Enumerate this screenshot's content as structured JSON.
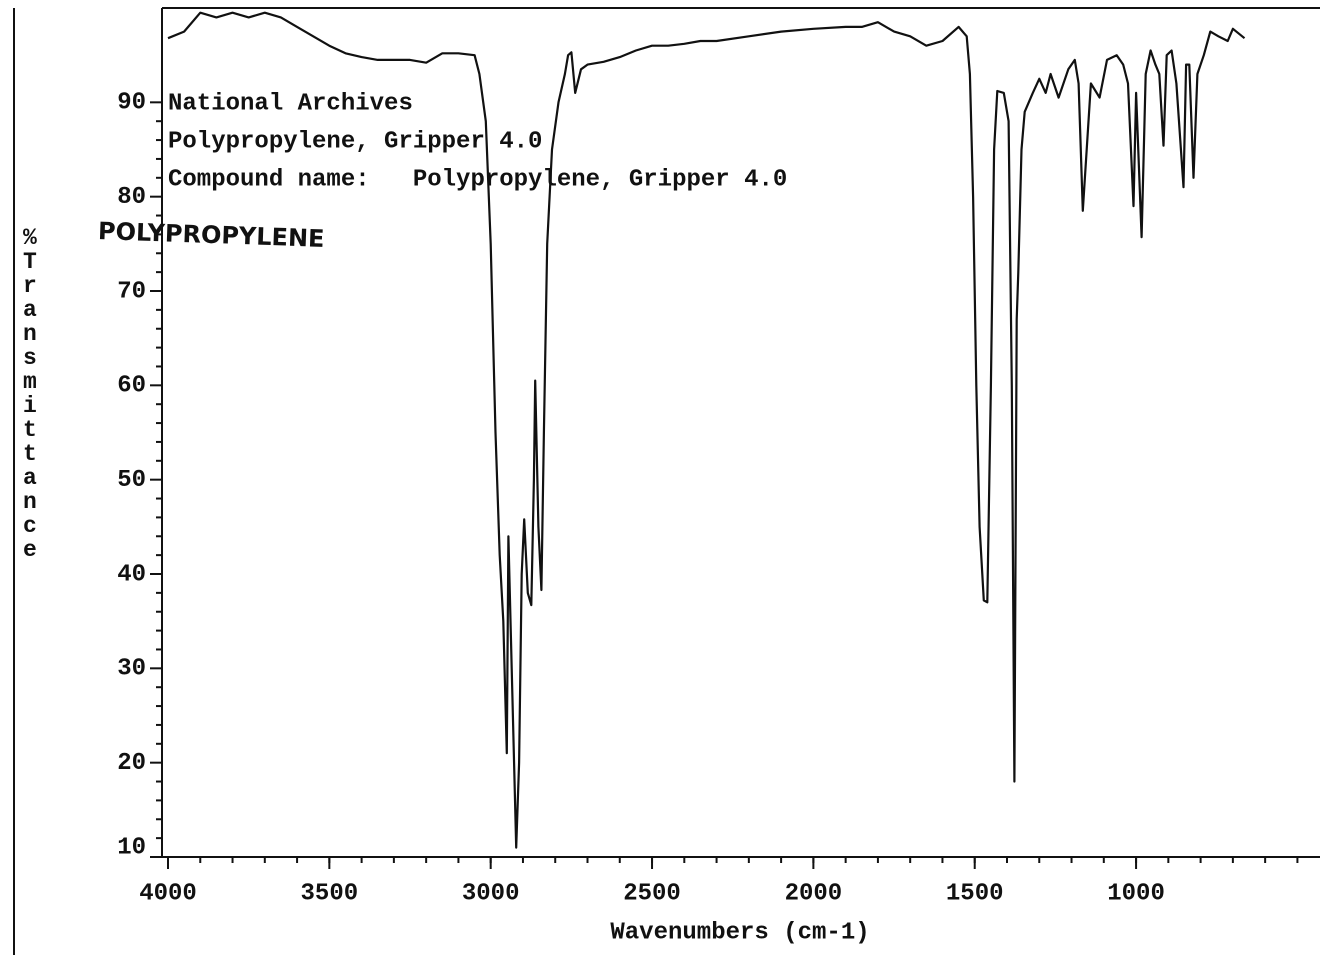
{
  "chart_data": {
    "type": "line",
    "annotations": [
      "National Archives",
      "Polypropylene, Gripper 4.0",
      "Compound name:   Polypropylene, Gripper 4.0",
      "POLYPROPYLENE"
    ],
    "x_label": "Wavenumbers (cm-1)",
    "y_label": "%Transmittance",
    "xlim": [
      4000,
      430
    ],
    "ylim": [
      10,
      100
    ],
    "xticks": [
      4000,
      3500,
      3000,
      2500,
      2000,
      1500,
      1000
    ],
    "yticks": [
      10,
      20,
      30,
      40,
      50,
      60,
      70,
      80,
      90
    ],
    "series": [
      {
        "name": "Polypropylene",
        "color": "#111111",
        "x": [
          4000,
          3950,
          3900,
          3850,
          3800,
          3750,
          3700,
          3650,
          3600,
          3550,
          3500,
          3450,
          3400,
          3350,
          3300,
          3250,
          3200,
          3150,
          3100,
          3050,
          3035,
          3015,
          3000,
          2985,
          2972,
          2961,
          2950,
          2945,
          2935,
          2921,
          2912,
          2904,
          2896,
          2885,
          2874,
          2866,
          2862,
          2852,
          2843,
          2835,
          2825,
          2810,
          2790,
          2770,
          2760,
          2750,
          2738,
          2720,
          2700,
          2650,
          2600,
          2550,
          2500,
          2450,
          2400,
          2350,
          2300,
          2200,
          2100,
          2000,
          1900,
          1850,
          1800,
          1750,
          1700,
          1650,
          1600,
          1550,
          1525,
          1515,
          1505,
          1495,
          1485,
          1472,
          1461,
          1450,
          1440,
          1430,
          1410,
          1395,
          1385,
          1377,
          1370,
          1365,
          1355,
          1345,
          1320,
          1300,
          1280,
          1265,
          1240,
          1210,
          1190,
          1178,
          1165,
          1140,
          1113,
          1090,
          1060,
          1040,
          1025,
          1008,
          1000,
          983,
          970,
          955,
          940,
          928,
          915,
          905,
          890,
          875,
          853,
          845,
          835,
          822,
          810,
          790,
          770,
          745,
          716,
          700,
          664
        ],
        "values": [
          96.8,
          97.5,
          99.5,
          99,
          99.5,
          99,
          99.5,
          99,
          98,
          97,
          96,
          95.2,
          94.8,
          94.5,
          94.5,
          94.5,
          94.2,
          95.2,
          95.2,
          95,
          93,
          88,
          75,
          55,
          42,
          35,
          21,
          44,
          30,
          11,
          20,
          40,
          45.8,
          38,
          36.7,
          50,
          60.5,
          45,
          38.3,
          55,
          75,
          85,
          90,
          93,
          95,
          95.3,
          91,
          93.5,
          94,
          94.3,
          94.8,
          95.5,
          96,
          96,
          96.2,
          96.5,
          96.5,
          97,
          97.5,
          97.8,
          98,
          98,
          98.5,
          97.5,
          97,
          96,
          96.5,
          98,
          97,
          93,
          80,
          60,
          45,
          37.2,
          37,
          60,
          85,
          91.2,
          91,
          88,
          60,
          18,
          67,
          72,
          85,
          89,
          91,
          92.5,
          91,
          93,
          90.5,
          93.5,
          94.5,
          92,
          78.5,
          92,
          90.5,
          94.5,
          95,
          94,
          92,
          79,
          91,
          75.7,
          93,
          95.5,
          94,
          93,
          85.4,
          95,
          95.5,
          92,
          81,
          94,
          94,
          82,
          93,
          95,
          97.5,
          97,
          96.5,
          97.8,
          96.8
        ]
      }
    ]
  }
}
